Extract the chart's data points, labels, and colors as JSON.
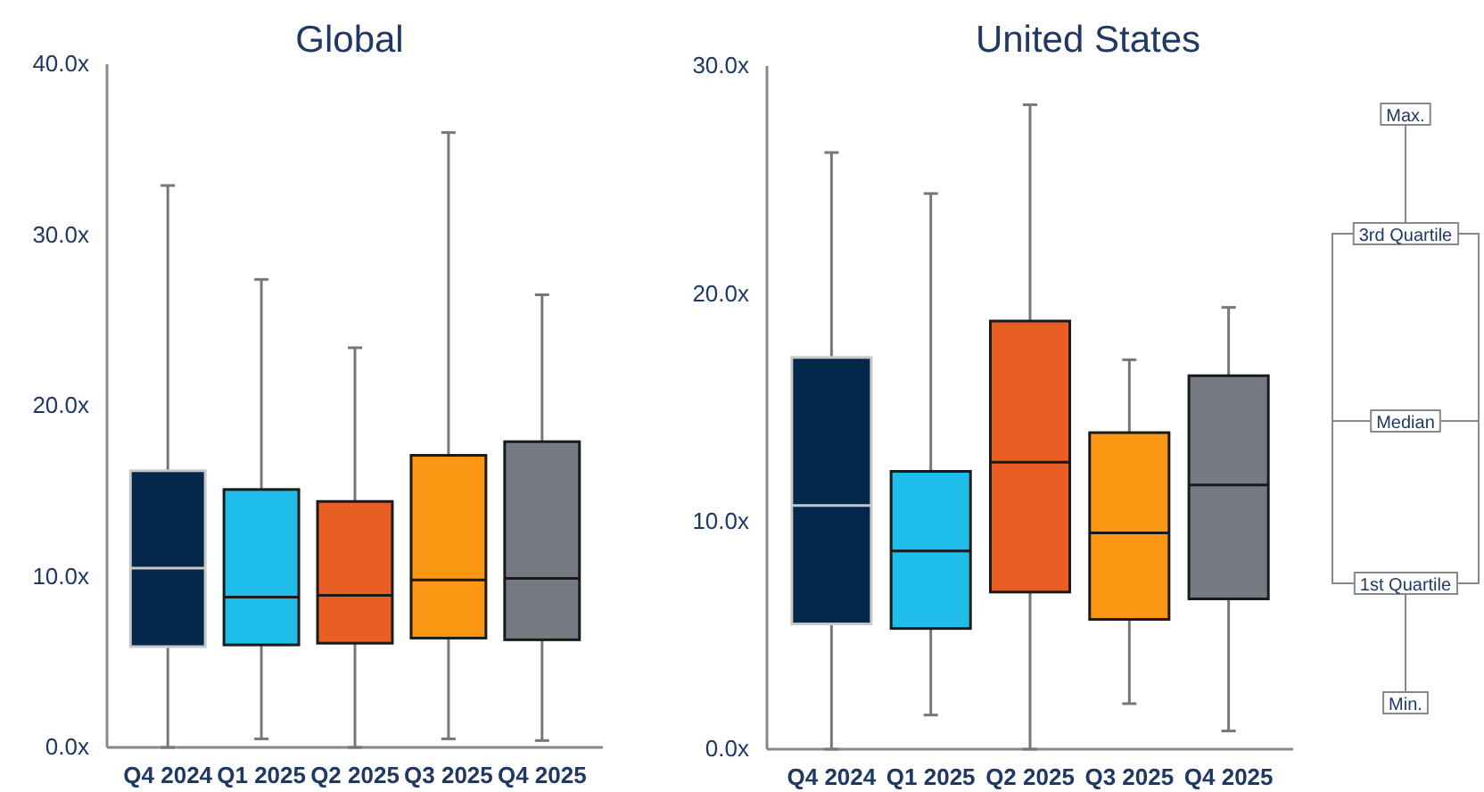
{
  "chart_data": [
    {
      "type": "box",
      "title": "Global",
      "categories": [
        "Q4 2024",
        "Q1 2025",
        "Q2 2025",
        "Q3 2025",
        "Q4 2025"
      ],
      "colors": [
        "#03284b",
        "#1fbde9",
        "#e85e23",
        "#fb9713",
        "#767b83"
      ],
      "boxes": [
        {
          "low": 0,
          "q1": 5.9,
          "median": 10.5,
          "q3": 16.2,
          "high": 32.9
        },
        {
          "low": 0.5,
          "q1": 6.0,
          "median": 8.8,
          "q3": 15.1,
          "high": 27.4
        },
        {
          "low": 0,
          "q1": 6.1,
          "median": 8.9,
          "q3": 14.4,
          "high": 23.4
        },
        {
          "low": 0.5,
          "q1": 6.4,
          "median": 9.8,
          "q3": 17.1,
          "high": 36.0
        },
        {
          "low": 0.4,
          "q1": 6.3,
          "median": 9.9,
          "q3": 17.9,
          "high": 26.5
        }
      ],
      "ylim": [
        0,
        40
      ],
      "yticks": [
        {
          "value": 0,
          "label": "0.0x"
        },
        {
          "value": 10,
          "label": "10.0x"
        },
        {
          "value": 20,
          "label": "20.0x"
        },
        {
          "value": 30,
          "label": "30.0x"
        },
        {
          "value": 40,
          "label": "40.0x"
        }
      ],
      "grid": false
    },
    {
      "type": "box",
      "title": "United States",
      "categories": [
        "Q4 2024",
        "Q1 2025",
        "Q2 2025",
        "Q3 2025",
        "Q4 2025"
      ],
      "colors": [
        "#03284b",
        "#1fbde9",
        "#e85e23",
        "#fb9713",
        "#767b83"
      ],
      "boxes": [
        {
          "low": 0,
          "q1": 5.5,
          "median": 10.7,
          "q3": 17.2,
          "high": 26.2
        },
        {
          "low": 1.5,
          "q1": 5.3,
          "median": 8.7,
          "q3": 12.2,
          "high": 24.4
        },
        {
          "low": 0,
          "q1": 6.9,
          "median": 12.6,
          "q3": 18.8,
          "high": 28.3
        },
        {
          "low": 2.0,
          "q1": 5.7,
          "median": 9.5,
          "q3": 13.9,
          "high": 17.1
        },
        {
          "low": 0.8,
          "q1": 6.6,
          "median": 11.6,
          "q3": 16.4,
          "high": 19.4
        }
      ],
      "ylim": [
        0,
        30
      ],
      "yticks": [
        {
          "value": 0,
          "label": "0.0x"
        },
        {
          "value": 10,
          "label": "10.0x"
        },
        {
          "value": 20,
          "label": "20.0x"
        },
        {
          "value": 30,
          "label": "30.0x"
        }
      ],
      "grid": false
    },
    {
      "type": "other",
      "annotations": [
        "Max.",
        "3rd Quartile",
        "Median",
        "1st Quartile",
        "Min."
      ]
    }
  ]
}
